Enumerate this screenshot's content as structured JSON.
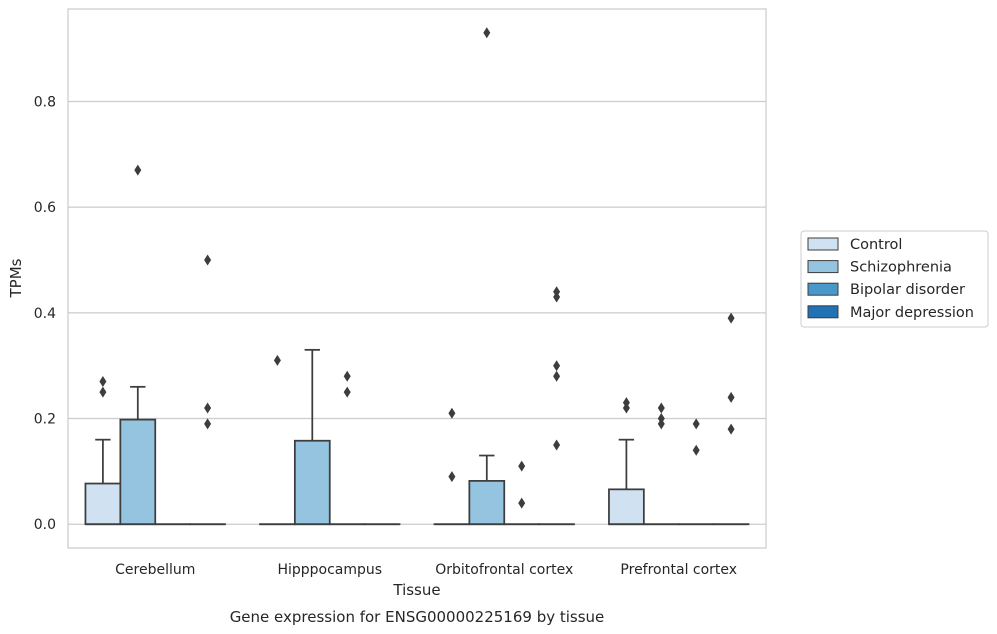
{
  "chart_data": {
    "type": "boxplot",
    "caption": "Gene expression for ENSG00000225169 by tissue",
    "xlabel": "Tissue",
    "ylabel": "TPMs",
    "ylim": [
      -0.045,
      0.975
    ],
    "yticks": [
      0.0,
      0.2,
      0.4,
      0.6,
      0.8
    ],
    "ytick_labels": [
      "0.0",
      "0.2",
      "0.4",
      "0.6",
      "0.8"
    ],
    "grid": "y",
    "legend_position": "right",
    "categories": [
      "Cerebellum",
      "Hipppocampus",
      "Orbitofrontal cortex",
      "Prefrontal cortex"
    ],
    "series": [
      {
        "name": "Control",
        "color": "#d0e1f2",
        "boxes": [
          {
            "q1": 0.0,
            "median": 0.0,
            "q3": 0.077,
            "whislo": 0.0,
            "whishi": 0.16,
            "fliers": [
              0.25,
              0.27
            ]
          },
          {
            "q1": 0.0,
            "median": 0.0,
            "q3": 0.0,
            "whislo": 0.0,
            "whishi": 0.0,
            "fliers": [
              0.31
            ]
          },
          {
            "q1": 0.0,
            "median": 0.0,
            "q3": 0.0,
            "whislo": 0.0,
            "whishi": 0.0,
            "fliers": [
              0.09,
              0.21
            ]
          },
          {
            "q1": 0.0,
            "median": 0.0,
            "q3": 0.066,
            "whislo": 0.0,
            "whishi": 0.16,
            "fliers": [
              0.22,
              0.23
            ]
          }
        ]
      },
      {
        "name": "Schizophrenia",
        "color": "#94c4df",
        "boxes": [
          {
            "q1": 0.0,
            "median": 0.0,
            "q3": 0.198,
            "whislo": 0.0,
            "whishi": 0.26,
            "fliers": [
              0.67
            ]
          },
          {
            "q1": 0.0,
            "median": 0.0,
            "q3": 0.158,
            "whislo": 0.0,
            "whishi": 0.33,
            "fliers": []
          },
          {
            "q1": 0.0,
            "median": 0.0,
            "q3": 0.082,
            "whislo": 0.0,
            "whishi": 0.13,
            "fliers": [
              0.93
            ]
          },
          {
            "q1": 0.0,
            "median": 0.0,
            "q3": 0.0,
            "whislo": 0.0,
            "whishi": 0.0,
            "fliers": [
              0.19,
              0.2,
              0.22
            ]
          }
        ]
      },
      {
        "name": "Bipolar disorder",
        "color": "#4a98c9",
        "boxes": [
          {
            "q1": 0.0,
            "median": 0.0,
            "q3": 0.0,
            "whislo": 0.0,
            "whishi": 0.0,
            "fliers": []
          },
          {
            "q1": 0.0,
            "median": 0.0,
            "q3": 0.0,
            "whislo": 0.0,
            "whishi": 0.0,
            "fliers": [
              0.25,
              0.28
            ]
          },
          {
            "q1": 0.0,
            "median": 0.0,
            "q3": 0.0,
            "whislo": 0.0,
            "whishi": 0.0,
            "fliers": [
              0.04,
              0.11
            ]
          },
          {
            "q1": 0.0,
            "median": 0.0,
            "q3": 0.0,
            "whislo": 0.0,
            "whishi": 0.0,
            "fliers": [
              0.14,
              0.19
            ]
          }
        ]
      },
      {
        "name": "Major depression",
        "color": "#2171b5",
        "boxes": [
          {
            "q1": 0.0,
            "median": 0.0,
            "q3": 0.0,
            "whislo": 0.0,
            "whishi": 0.0,
            "fliers": [
              0.19,
              0.22,
              0.5
            ]
          },
          {
            "q1": 0.0,
            "median": 0.0,
            "q3": 0.0,
            "whislo": 0.0,
            "whishi": 0.0,
            "fliers": []
          },
          {
            "q1": 0.0,
            "median": 0.0,
            "q3": 0.0,
            "whislo": 0.0,
            "whishi": 0.0,
            "fliers": [
              0.15,
              0.28,
              0.3,
              0.43,
              0.44
            ]
          },
          {
            "q1": 0.0,
            "median": 0.0,
            "q3": 0.0,
            "whislo": 0.0,
            "whishi": 0.0,
            "fliers": [
              0.18,
              0.24,
              0.39
            ]
          }
        ]
      }
    ]
  }
}
